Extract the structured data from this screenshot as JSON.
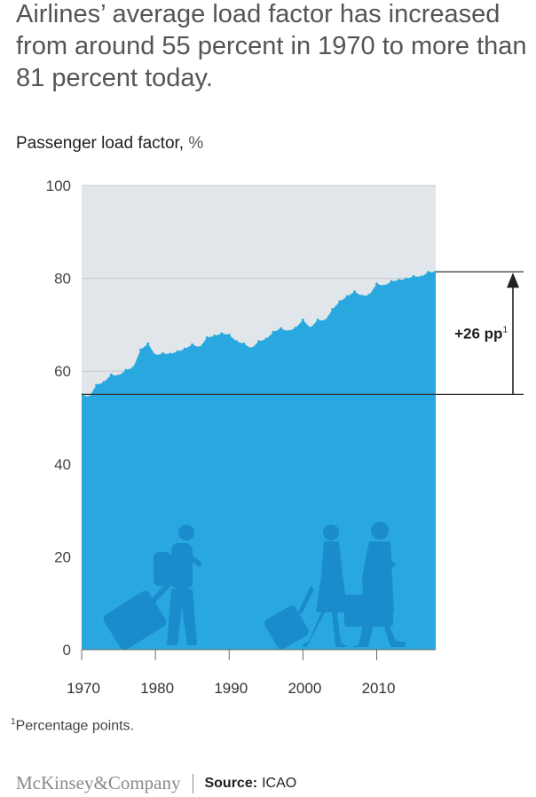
{
  "headline": "Airlines’ average load factor has increased from around 55 percent in 1970 to more than 81 percent today.",
  "subtitle": {
    "label": "Passenger load factor,",
    "unit": "%"
  },
  "footnote": {
    "marker": "1",
    "text": "Percentage points."
  },
  "footer": {
    "brand": "McKinsey&Company",
    "source_label": "Source:",
    "source_value": "ICAO"
  },
  "colors": {
    "area": "#29a8e0",
    "background_area": "#e1e6ea",
    "silhouettes": "#1a8ccb",
    "reference_line": "#333333"
  },
  "chart_data": {
    "type": "area",
    "title": "Passenger load factor, %",
    "x": [
      1970,
      1971,
      1972,
      1973,
      1974,
      1975,
      1976,
      1977,
      1978,
      1979,
      1980,
      1981,
      1982,
      1983,
      1984,
      1985,
      1986,
      1987,
      1988,
      1989,
      1990,
      1991,
      1992,
      1993,
      1994,
      1995,
      1996,
      1997,
      1998,
      1999,
      2000,
      2001,
      2002,
      2003,
      2004,
      2005,
      2006,
      2007,
      2008,
      2009,
      2010,
      2011,
      2012,
      2013,
      2014,
      2015,
      2016,
      2017,
      2018
    ],
    "values": [
      55,
      54.4,
      57,
      57.6,
      59.2,
      59,
      60.2,
      60.8,
      64.6,
      65.9,
      63.4,
      63.8,
      63.7,
      64.2,
      64.8,
      65.7,
      65.1,
      67.2,
      67.6,
      68.1,
      67.8,
      66.4,
      65.9,
      64.9,
      66.4,
      66.9,
      68.4,
      69.2,
      68.6,
      69.3,
      71,
      69.3,
      71,
      70.9,
      73.3,
      75,
      76.1,
      77.1,
      76.2,
      76.4,
      78.8,
      78.4,
      79.3,
      79.6,
      79.9,
      80.4,
      80.3,
      81.3,
      81.4
    ],
    "xlim": [
      1970,
      2018
    ],
    "ylim": [
      0,
      100
    ],
    "x_ticks": [
      1970,
      1980,
      1990,
      2000,
      2010
    ],
    "y_ticks": [
      0,
      20,
      40,
      60,
      80,
      100
    ],
    "reference": {
      "baseline": 55,
      "current": 81.4,
      "label": "+26 pp",
      "label_marker": "1"
    }
  }
}
